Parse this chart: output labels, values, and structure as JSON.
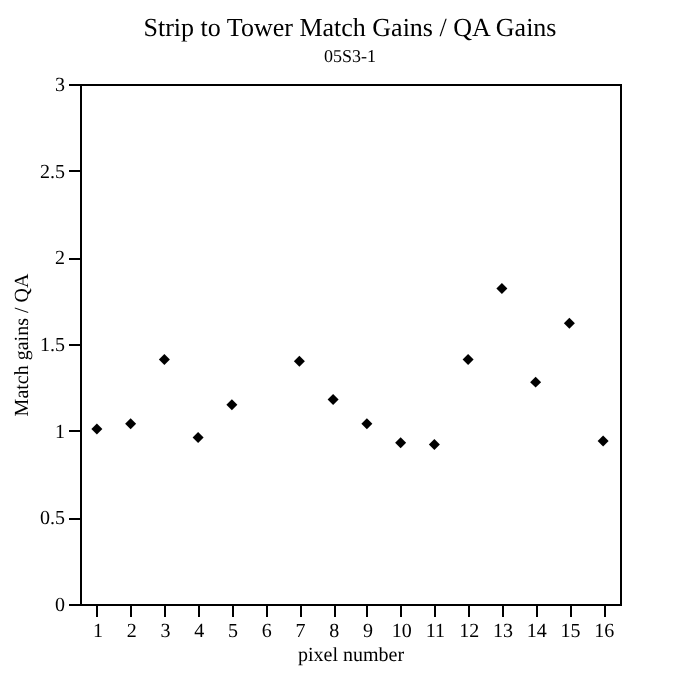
{
  "chart_data": {
    "type": "scatter",
    "title": "Strip to Tower Match Gains / QA Gains",
    "subtitle": "05S3-1",
    "xlabel": "pixel number",
    "ylabel": "Match gains / QA",
    "x": [
      1,
      2,
      3,
      4,
      5,
      6,
      7,
      8,
      9,
      10,
      11,
      12,
      13,
      14,
      15,
      16
    ],
    "values": [
      1.01,
      1.04,
      1.41,
      0.96,
      1.15,
      null,
      1.4,
      1.18,
      1.04,
      0.93,
      0.92,
      1.41,
      1.82,
      1.28,
      1.62,
      0.94
    ],
    "errors": [
      null,
      null,
      null,
      null,
      null,
      null,
      null,
      null,
      0.02,
      0.02,
      null,
      0.02,
      null,
      null,
      null,
      0.02
    ],
    "color": "#000000",
    "marker": "diamond",
    "grid": false,
    "xlim": [
      0.5,
      16.5
    ],
    "xticks": [
      1,
      2,
      3,
      4,
      5,
      6,
      7,
      8,
      9,
      10,
      11,
      12,
      13,
      14,
      15,
      16
    ],
    "ylim": [
      0,
      3
    ],
    "yticks": [
      0,
      0.5,
      1,
      1.5,
      2,
      2.5,
      3
    ]
  }
}
